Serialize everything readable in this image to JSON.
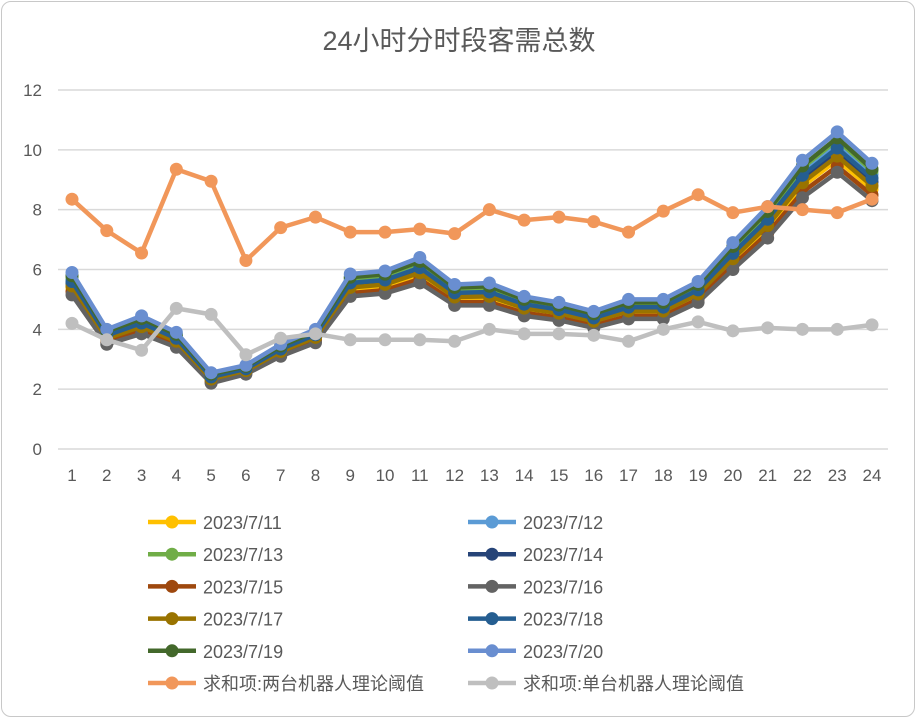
{
  "chart_data": {
    "type": "line",
    "title": "24小时分时段客需总数",
    "xlabel": "",
    "ylabel": "",
    "categories": [
      "1",
      "2",
      "3",
      "4",
      "5",
      "6",
      "7",
      "8",
      "9",
      "10",
      "11",
      "12",
      "13",
      "14",
      "15",
      "16",
      "17",
      "18",
      "19",
      "20",
      "21",
      "22",
      "23",
      "24"
    ],
    "ylim": [
      0,
      12
    ],
    "yticks": [
      "0",
      "2",
      "4",
      "6",
      "8",
      "10",
      "12"
    ],
    "grid": true,
    "legend_placement": "bottom",
    "series": [
      {
        "name": "2023/7/11",
        "color": "#FFC000",
        "values": [
          5.38,
          3.65,
          4.03,
          3.55,
          2.31,
          2.59,
          3.22,
          3.69,
          5.33,
          5.43,
          5.81,
          5.01,
          5.03,
          4.65,
          4.48,
          4.22,
          4.55,
          4.55,
          5.11,
          6.27,
          7.37,
          8.78,
          9.66,
          8.68
        ]
      },
      {
        "name": "2023/7/12",
        "color": "#5B9BD5",
        "values": [
          5.68,
          3.85,
          4.27,
          3.75,
          2.45,
          2.71,
          3.38,
          3.87,
          5.63,
          5.73,
          6.15,
          5.29,
          5.33,
          4.91,
          4.72,
          4.44,
          4.81,
          4.81,
          5.39,
          6.63,
          7.79,
          9.28,
          10.2,
          9.18
        ]
      },
      {
        "name": "2023/7/13",
        "color": "#70AD47",
        "values": [
          5.75,
          3.9,
          4.33,
          3.8,
          2.48,
          2.74,
          3.42,
          3.91,
          5.7,
          5.8,
          6.23,
          5.36,
          5.4,
          4.97,
          4.78,
          4.49,
          4.87,
          4.87,
          5.46,
          6.72,
          7.89,
          9.4,
          10.33,
          9.3
        ]
      },
      {
        "name": "2023/7/14",
        "color": "#264478",
        "values": [
          5.53,
          3.75,
          4.15,
          3.65,
          2.38,
          2.65,
          3.3,
          3.78,
          5.48,
          5.58,
          5.98,
          5.15,
          5.18,
          4.78,
          4.6,
          4.33,
          4.68,
          4.68,
          5.25,
          6.45,
          7.58,
          9.03,
          9.93,
          8.93
        ]
      },
      {
        "name": "2023/7/15",
        "color": "#9E480E",
        "values": [
          5.26,
          3.58,
          3.94,
          3.48,
          2.25,
          2.55,
          3.16,
          3.62,
          5.21,
          5.31,
          5.68,
          4.91,
          4.91,
          4.55,
          4.39,
          4.13,
          4.45,
          4.45,
          5.01,
          6.14,
          7.21,
          8.59,
          9.45,
          8.49
        ]
      },
      {
        "name": "2023/7/16",
        "color": "#636363",
        "values": [
          5.15,
          3.5,
          3.85,
          3.4,
          2.2,
          2.5,
          3.1,
          3.55,
          5.1,
          5.2,
          5.55,
          4.8,
          4.8,
          4.45,
          4.3,
          4.05,
          4.35,
          4.35,
          4.9,
          6.0,
          7.05,
          8.4,
          9.25,
          8.3
        ]
      },
      {
        "name": "2023/7/17",
        "color": "#997300",
        "values": [
          5.45,
          3.7,
          4.09,
          3.6,
          2.34,
          2.62,
          3.26,
          3.73,
          5.4,
          5.5,
          5.89,
          5.08,
          5.1,
          4.71,
          4.54,
          4.27,
          4.61,
          4.61,
          5.18,
          6.36,
          7.47,
          8.9,
          9.79,
          8.8
        ]
      },
      {
        "name": "2023/7/18",
        "color": "#255E91",
        "values": [
          5.6,
          3.8,
          4.21,
          3.7,
          2.41,
          2.68,
          3.34,
          3.82,
          5.55,
          5.65,
          6.06,
          5.22,
          5.25,
          4.84,
          4.66,
          4.38,
          4.74,
          4.74,
          5.32,
          6.54,
          7.68,
          9.15,
          10.06,
          9.05
        ]
      },
      {
        "name": "2023/7/19",
        "color": "#43682B",
        "values": [
          5.79,
          3.93,
          4.36,
          3.83,
          2.5,
          2.76,
          3.44,
          3.93,
          5.74,
          5.84,
          6.27,
          5.4,
          5.44,
          5.0,
          4.81,
          4.52,
          4.9,
          4.9,
          5.5,
          6.77,
          7.94,
          9.46,
          10.4,
          9.36
        ]
      },
      {
        "name": "2023/7/20",
        "color": "#698ED0",
        "values": [
          5.9,
          4.0,
          4.45,
          3.9,
          2.55,
          2.8,
          3.5,
          4.0,
          5.85,
          5.95,
          6.4,
          5.5,
          5.55,
          5.1,
          4.9,
          4.6,
          5.0,
          5.0,
          5.6,
          6.9,
          8.1,
          9.65,
          10.6,
          9.55
        ]
      },
      {
        "name": "求和项:两台机器人理论阈值",
        "color": "#F1975A",
        "values": [
          8.35,
          7.3,
          6.55,
          9.35,
          8.95,
          6.3,
          7.4,
          7.75,
          7.25,
          7.25,
          7.35,
          7.2,
          8.0,
          7.65,
          7.75,
          7.6,
          7.25,
          7.95,
          8.5,
          7.9,
          8.1,
          8.0,
          7.9,
          8.35
        ]
      },
      {
        "name": "求和项:单台机器人理论阈值",
        "color": "#BFBFBF",
        "values": [
          4.2,
          3.65,
          3.3,
          4.7,
          4.5,
          3.15,
          3.7,
          3.85,
          3.65,
          3.65,
          3.65,
          3.6,
          4.0,
          3.85,
          3.85,
          3.8,
          3.6,
          4.0,
          4.25,
          3.95,
          4.05,
          4.0,
          4.0,
          4.15
        ]
      }
    ]
  }
}
